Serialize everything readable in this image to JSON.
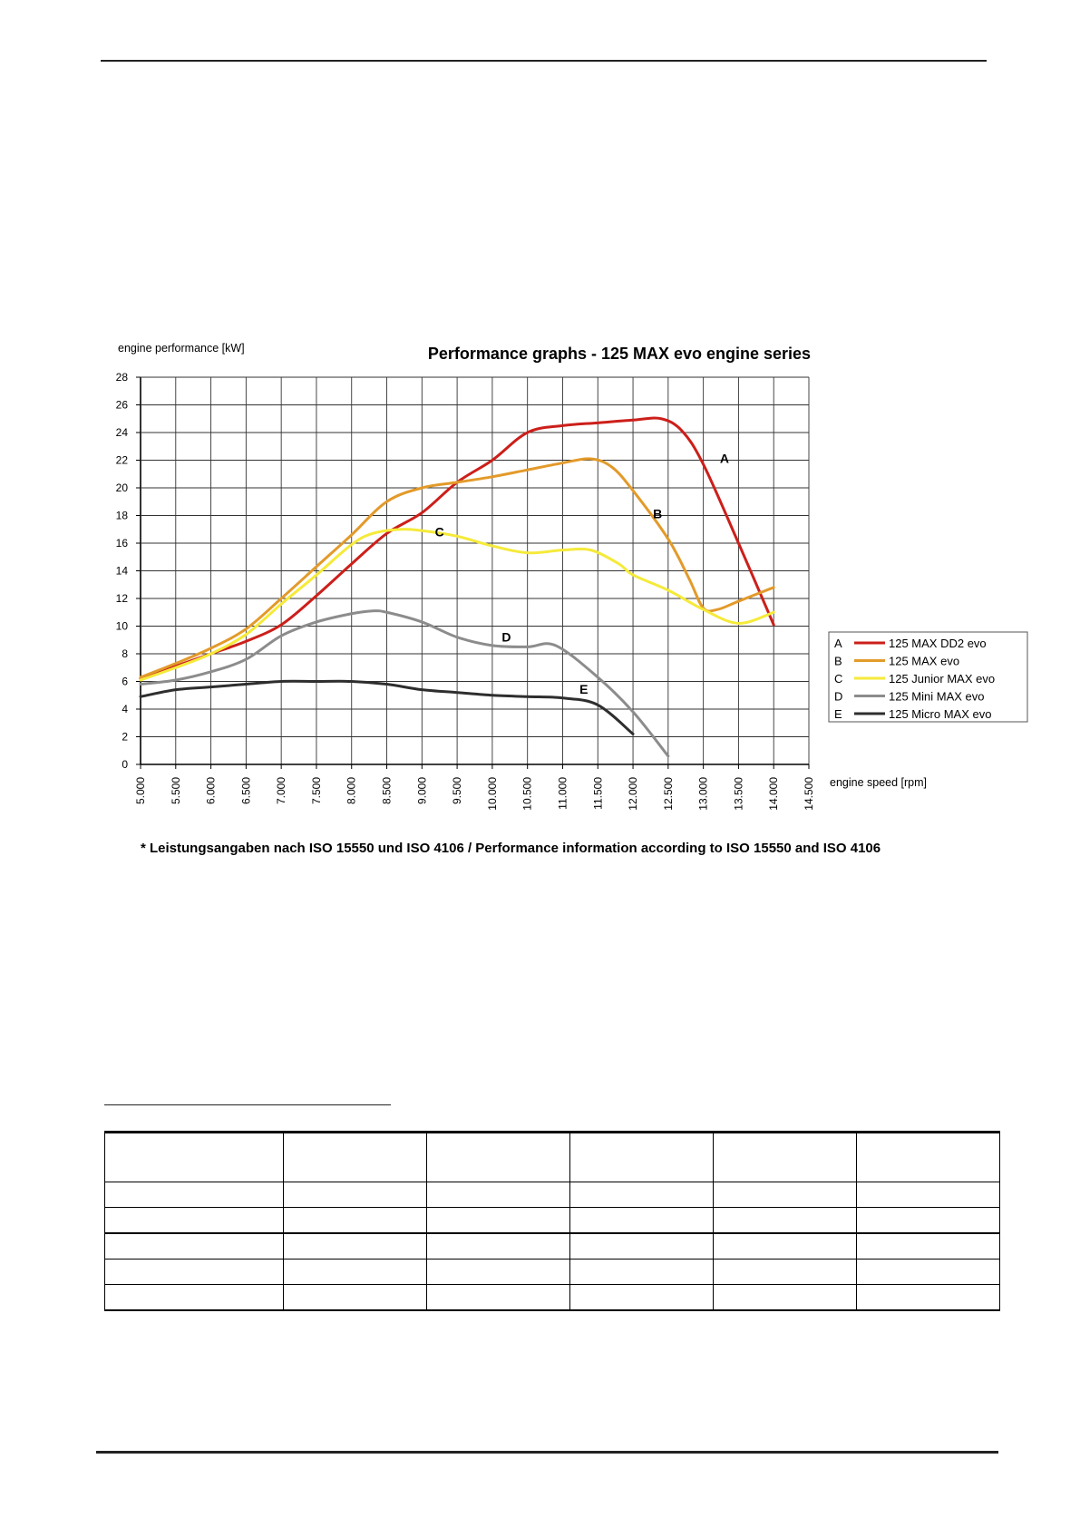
{
  "footnote": "* Leistungsangaben nach ISO 15550 und ISO 4106 / Performance information according to ISO 15550 and ISO 4106",
  "chart_data": {
    "type": "line",
    "title": "Performance graphs - 125 MAX evo engine series",
    "ylabel": "engine performance [kW]",
    "xlabel": "engine speed [rpm]",
    "xlim": [
      5000,
      14500
    ],
    "ylim": [
      0,
      28
    ],
    "x_ticks": [
      "5.000",
      "5.500",
      "6.000",
      "6.500",
      "7.000",
      "7.500",
      "8.000",
      "8.500",
      "9.000",
      "9.500",
      "10.000",
      "10.500",
      "11.000",
      "11.500",
      "12.000",
      "12.500",
      "13.000",
      "13.500",
      "14.000",
      "14.500"
    ],
    "y_ticks": [
      "0",
      "2",
      "4",
      "6",
      "8",
      "10",
      "12",
      "14",
      "16",
      "18",
      "20",
      "22",
      "24",
      "26",
      "28"
    ],
    "grid": true,
    "legend_position": "right",
    "series": [
      {
        "letter": "A",
        "name": "125 MAX DD2 evo",
        "color": "#cc1f1a",
        "label_at": [
          13300,
          21.8
        ],
        "points": [
          [
            5000,
            6.2
          ],
          [
            5500,
            7.1
          ],
          [
            6000,
            8.0
          ],
          [
            6500,
            8.9
          ],
          [
            7000,
            10.1
          ],
          [
            7500,
            12.2
          ],
          [
            8000,
            14.5
          ],
          [
            8500,
            16.7
          ],
          [
            9000,
            18.2
          ],
          [
            9500,
            20.4
          ],
          [
            10000,
            22.0
          ],
          [
            10500,
            24.0
          ],
          [
            11000,
            24.5
          ],
          [
            11500,
            24.7
          ],
          [
            12000,
            24.9
          ],
          [
            12400,
            25.0
          ],
          [
            12700,
            24.1
          ],
          [
            13000,
            21.7
          ],
          [
            13500,
            16.0
          ],
          [
            14000,
            10.1
          ]
        ]
      },
      {
        "letter": "B",
        "name": "125 MAX evo",
        "color": "#e39a2a",
        "label_at": [
          12350,
          17.8
        ],
        "points": [
          [
            5000,
            6.3
          ],
          [
            5500,
            7.3
          ],
          [
            6000,
            8.4
          ],
          [
            6500,
            9.8
          ],
          [
            7000,
            12.0
          ],
          [
            7500,
            14.3
          ],
          [
            8000,
            16.6
          ],
          [
            8500,
            19.0
          ],
          [
            9000,
            20.0
          ],
          [
            9500,
            20.4
          ],
          [
            10000,
            20.8
          ],
          [
            10500,
            21.3
          ],
          [
            11000,
            21.8
          ],
          [
            11400,
            22.1
          ],
          [
            11700,
            21.5
          ],
          [
            12000,
            19.8
          ],
          [
            12500,
            16.3
          ],
          [
            12800,
            13.4
          ],
          [
            13000,
            11.3
          ],
          [
            13200,
            11.2
          ],
          [
            13500,
            11.8
          ],
          [
            14000,
            12.8
          ]
        ]
      },
      {
        "letter": "C",
        "name": "125 Junior MAX evo",
        "color": "#f5ea3a",
        "label_at": [
          9250,
          16.5
        ],
        "points": [
          [
            5000,
            6.1
          ],
          [
            5500,
            7.0
          ],
          [
            6000,
            8.0
          ],
          [
            6500,
            9.4
          ],
          [
            7000,
            11.6
          ],
          [
            7500,
            13.7
          ],
          [
            8000,
            15.9
          ],
          [
            8300,
            16.7
          ],
          [
            8700,
            17.0
          ],
          [
            9000,
            16.9
          ],
          [
            9500,
            16.5
          ],
          [
            10000,
            15.8
          ],
          [
            10500,
            15.3
          ],
          [
            11000,
            15.5
          ],
          [
            11400,
            15.5
          ],
          [
            11800,
            14.5
          ],
          [
            12000,
            13.7
          ],
          [
            12500,
            12.6
          ],
          [
            13000,
            11.2
          ],
          [
            13500,
            10.2
          ],
          [
            14000,
            11.0
          ]
        ]
      },
      {
        "letter": "D",
        "name": "125 Mini MAX evo",
        "color": "#8c8c8c",
        "label_at": [
          10200,
          8.9
        ],
        "points": [
          [
            5000,
            5.8
          ],
          [
            5500,
            6.1
          ],
          [
            6000,
            6.7
          ],
          [
            6500,
            7.6
          ],
          [
            7000,
            9.3
          ],
          [
            7500,
            10.3
          ],
          [
            8000,
            10.9
          ],
          [
            8300,
            11.1
          ],
          [
            8500,
            11.0
          ],
          [
            9000,
            10.3
          ],
          [
            9500,
            9.2
          ],
          [
            10000,
            8.6
          ],
          [
            10500,
            8.5
          ],
          [
            10900,
            8.6
          ],
          [
            11500,
            6.3
          ],
          [
            12000,
            3.8
          ],
          [
            12500,
            0.6
          ]
        ]
      },
      {
        "letter": "E",
        "name": "125 Micro MAX evo",
        "color": "#2e2e2e",
        "label_at": [
          11300,
          5.1
        ],
        "points": [
          [
            5000,
            4.9
          ],
          [
            5500,
            5.4
          ],
          [
            6000,
            5.6
          ],
          [
            6500,
            5.8
          ],
          [
            7000,
            6.0
          ],
          [
            7500,
            6.0
          ],
          [
            8000,
            6.0
          ],
          [
            8500,
            5.8
          ],
          [
            9000,
            5.4
          ],
          [
            9500,
            5.2
          ],
          [
            10000,
            5.0
          ],
          [
            10500,
            4.9
          ],
          [
            11000,
            4.8
          ],
          [
            11500,
            4.3
          ],
          [
            12000,
            2.2
          ]
        ]
      }
    ]
  }
}
